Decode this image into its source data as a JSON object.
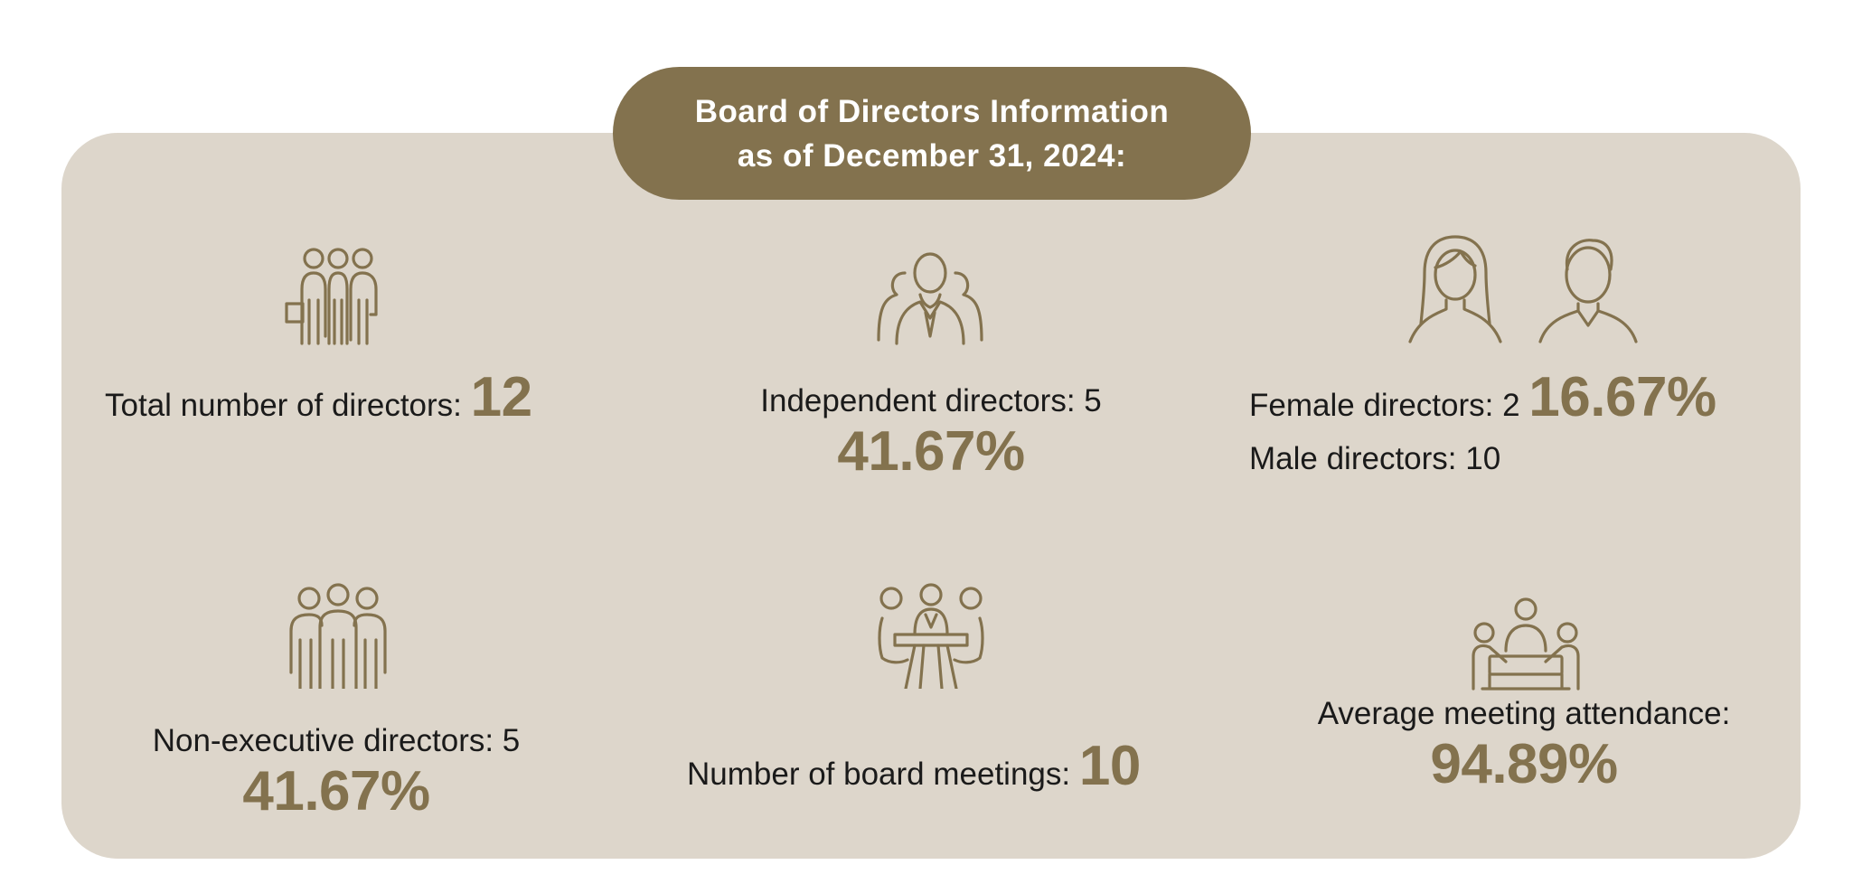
{
  "header": {
    "title_line1": "Board of Directors Information",
    "title_line2": "as of December 31, 2024:"
  },
  "stats": {
    "total_directors": {
      "label": "Total number of directors:",
      "value": "12"
    },
    "independent_directors": {
      "label": "Independent directors: 5",
      "percent": "41.67%"
    },
    "female_directors": {
      "label": "Female directors: 2",
      "percent": "16.67%"
    },
    "male_directors": {
      "label": "Male directors: 10"
    },
    "non_executive_directors": {
      "label": "Non-executive directors: 5",
      "percent": "41.67%"
    },
    "board_meetings": {
      "label": "Number of board meetings:",
      "value": "10"
    },
    "average_attendance": {
      "label": "Average meeting attendance:",
      "percent": "94.89%"
    }
  },
  "icons": {
    "total": "group-of-people-icon",
    "independent": "director-with-team-icon",
    "gender": "female-and-male-icon",
    "non_executive": "standing-group-icon",
    "meetings": "people-at-table-icon",
    "attendance": "meeting-attendance-icon"
  },
  "colors": {
    "accent": "#83724e",
    "panel": "#ddd6cb",
    "text": "#1a1a1a"
  }
}
